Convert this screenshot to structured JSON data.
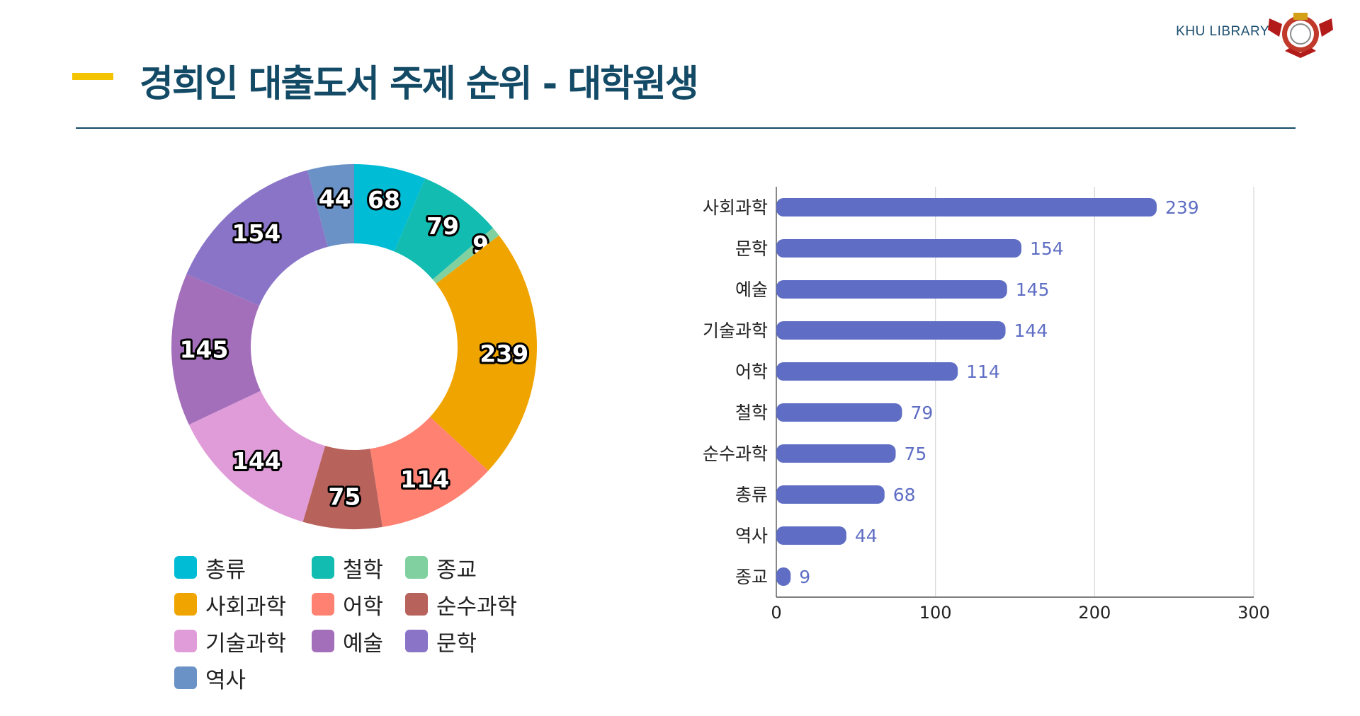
{
  "header": {
    "brand": "KHU LIBRARY",
    "title": "경희인 대출도서 주제 순위 - 대학원생",
    "accent_color": "#f5c400",
    "title_color": "#134a66"
  },
  "legend": [
    {
      "label": "총류",
      "color": "#00bcd4"
    },
    {
      "label": "철학",
      "color": "#13bcb0"
    },
    {
      "label": "종교",
      "color": "#80d0a0"
    },
    {
      "label": "사회과학",
      "color": "#f0a400"
    },
    {
      "label": "어학",
      "color": "#ff8172"
    },
    {
      "label": "순수과학",
      "color": "#b8625c"
    },
    {
      "label": "기술과학",
      "color": "#e09cd8"
    },
    {
      "label": "예술",
      "color": "#a46fba"
    },
    {
      "label": "문학",
      "color": "#8a74c8"
    },
    {
      "label": "역사",
      "color": "#6a92c6"
    }
  ],
  "chart_data": [
    {
      "type": "pie",
      "donut": true,
      "categories": [
        "총류",
        "철학",
        "종교",
        "사회과학",
        "어학",
        "순수과학",
        "기술과학",
        "예술",
        "문학",
        "역사"
      ],
      "values": [
        68,
        79,
        9,
        239,
        114,
        75,
        144,
        145,
        154,
        44
      ],
      "colors": [
        "#00bcd4",
        "#13bcb0",
        "#80d0a0",
        "#f0a400",
        "#ff8172",
        "#b8625c",
        "#e09cd8",
        "#a46fba",
        "#8a74c8",
        "#6a92c6"
      ],
      "legend_position": "bottom"
    },
    {
      "type": "bar",
      "orientation": "horizontal",
      "categories": [
        "사회과학",
        "문학",
        "예술",
        "기술과학",
        "어학",
        "철학",
        "순수과학",
        "총류",
        "역사",
        "종교"
      ],
      "values": [
        239,
        154,
        145,
        144,
        114,
        79,
        75,
        68,
        44,
        9
      ],
      "xlim": [
        0,
        300
      ],
      "xticks": [
        0,
        100,
        200,
        300
      ],
      "grid": true,
      "bar_color": "#5f6ec4"
    }
  ]
}
